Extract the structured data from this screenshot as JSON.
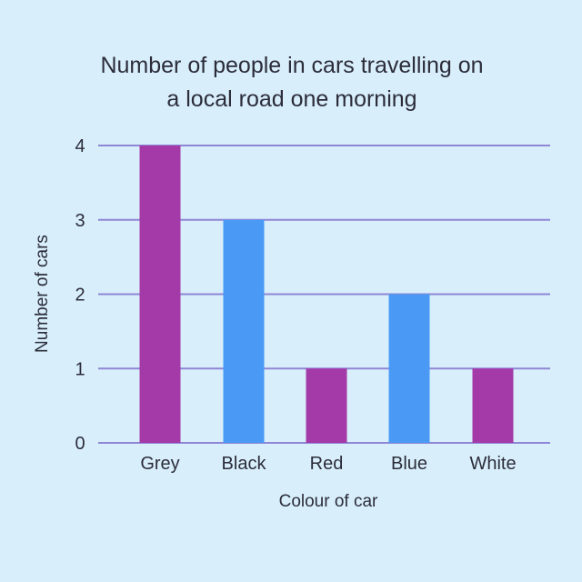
{
  "chart_data": {
    "type": "bar",
    "title_lines": [
      "Number of people in cars travelling on",
      "a local road one morning"
    ],
    "xlabel": "Colour of car",
    "ylabel": "Number of cars",
    "categories": [
      "Grey",
      "Black",
      "Red",
      "Blue",
      "White"
    ],
    "values": [
      4,
      3,
      1,
      2,
      1
    ],
    "bar_colors": [
      "#a33aa8",
      "#4a9af5",
      "#a33aa8",
      "#4a9af5",
      "#a33aa8"
    ],
    "y_ticks": [
      "0",
      "1",
      "2",
      "3",
      "4"
    ],
    "ylim": [
      0,
      4
    ],
    "grid": true,
    "legend": "none"
  },
  "colors": {
    "background": "#d8effb",
    "gridline": "#8f86d6",
    "text": "#2c2c3a"
  }
}
